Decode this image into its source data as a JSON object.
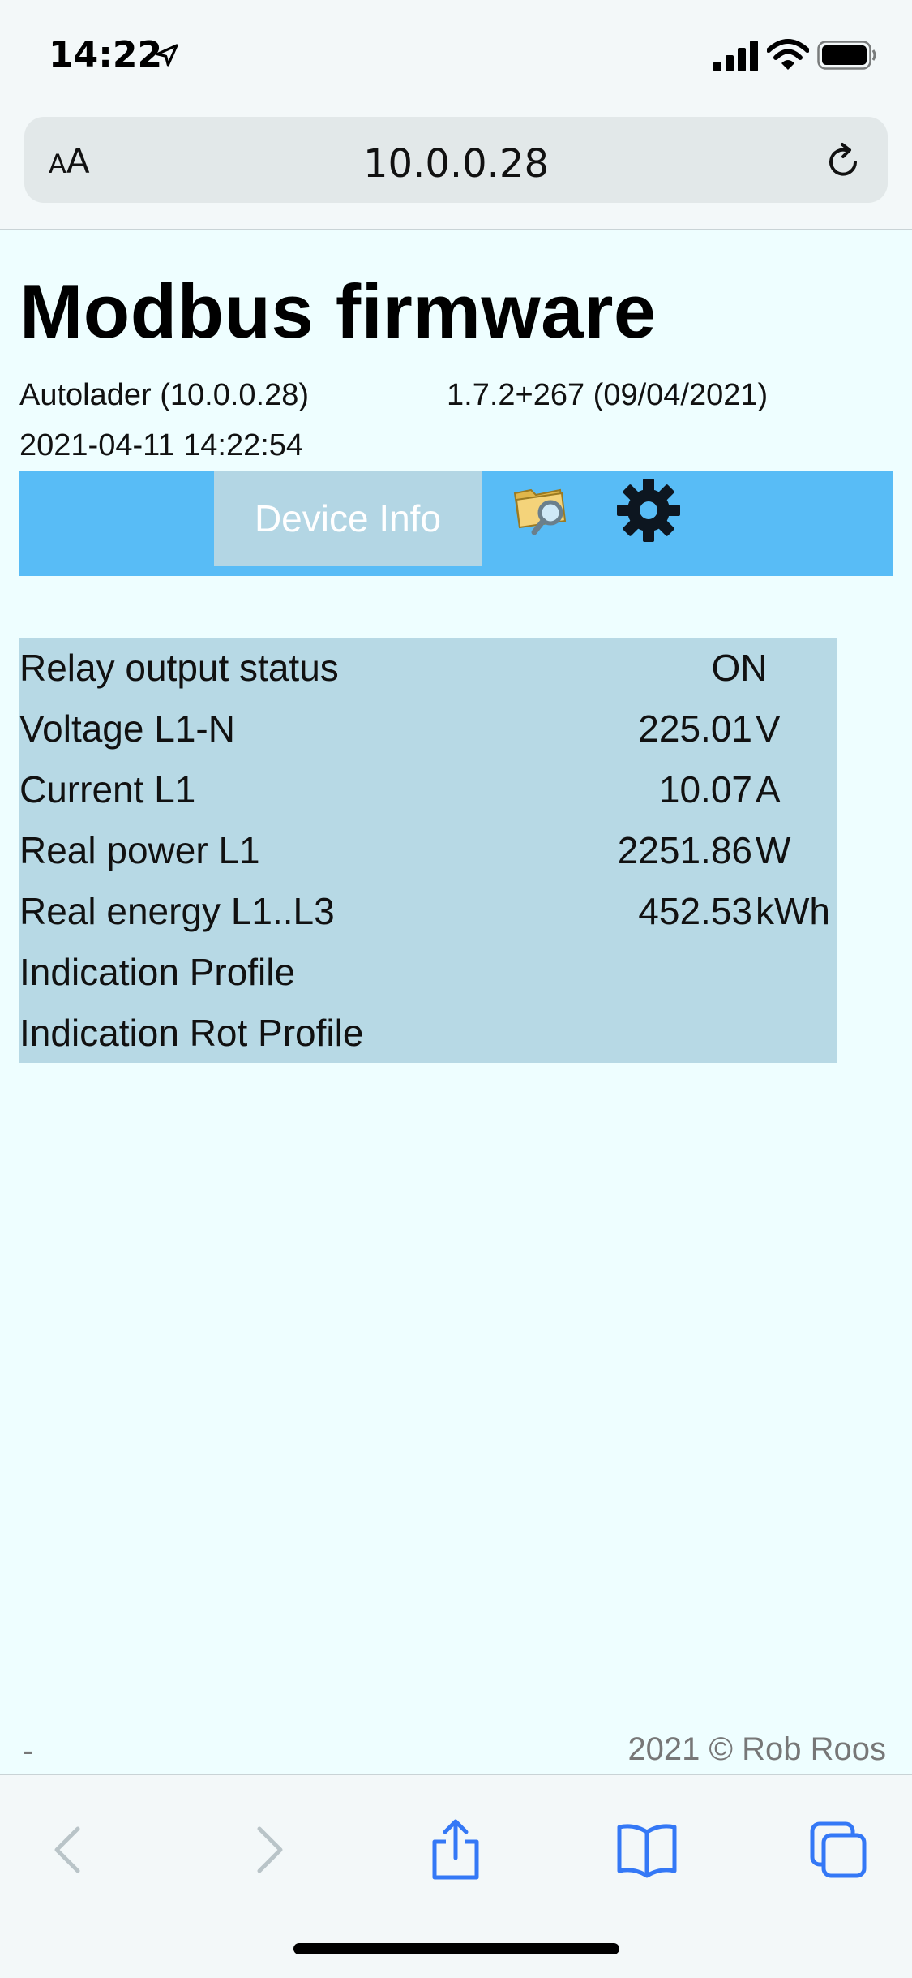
{
  "status_bar": {
    "time": "14:22",
    "icons": [
      "location-arrow-icon",
      "cellular-signal-icon",
      "wifi-icon",
      "battery-icon"
    ]
  },
  "browser": {
    "text_size_button": {
      "small": "A",
      "large": "A"
    },
    "url": "10.0.0.28",
    "reload_icon": "reload-icon",
    "toolbar_icons": [
      "back-arrow-icon",
      "forward-arrow-icon",
      "share-icon",
      "bookmarks-icon",
      "tabs-icon"
    ]
  },
  "page": {
    "title": "Modbus firmware",
    "device": "Autolader (10.0.0.28)",
    "version": "1.7.2+267 (09/04/2021)",
    "datetime": "2021-04-11 14:22:54",
    "nav": {
      "tab_label": "Device Info",
      "icons": [
        "folder-search-icon",
        "gear-icon"
      ]
    },
    "rows": [
      {
        "label": "Relay output status",
        "value": "ON",
        "unit": ""
      },
      {
        "label": "Voltage L1-N",
        "value": "225.01",
        "unit": "V"
      },
      {
        "label": "Current L1",
        "value": "10.07",
        "unit": "A"
      },
      {
        "label": "Real power L1",
        "value": "2251.86",
        "unit": "W"
      },
      {
        "label": "Real energy L1..L3",
        "value": "452.53",
        "unit": "kWh"
      },
      {
        "label": "Indication Profile",
        "value": "",
        "unit": ""
      },
      {
        "label": "Indication Rot Profile",
        "value": "",
        "unit": ""
      }
    ],
    "footer_left": "-",
    "footer_right": "2021 © Rob Roos"
  },
  "colors": {
    "page_background": "#eefeff",
    "nav_bar": "#58bcf6",
    "nav_tab": "#b3d6e4",
    "table_background": "#b7d9e5",
    "ios_blue": "#3478f6"
  }
}
